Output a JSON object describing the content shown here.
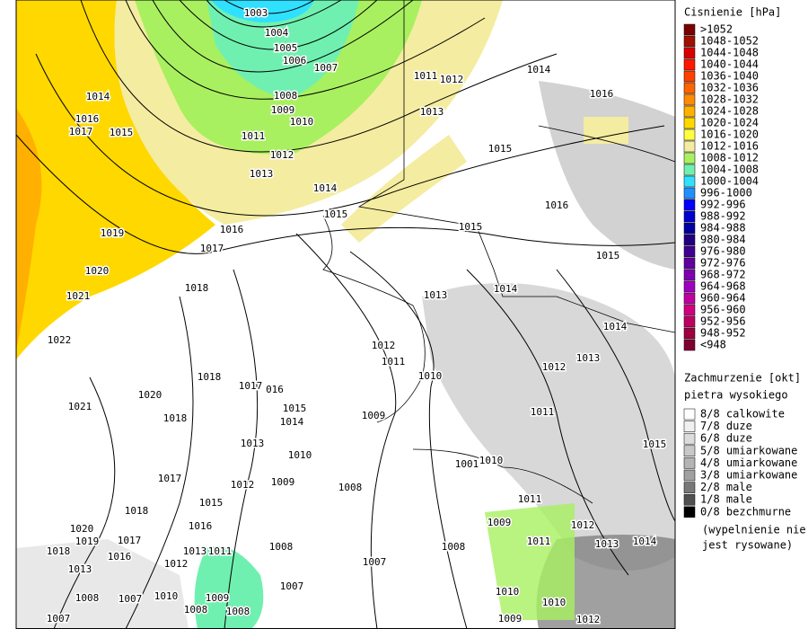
{
  "map": {
    "legend_pressure": {
      "title": "Cisnienie [hPa]",
      "classes": [
        {
          "label": ">1052",
          "color": "#7a0000"
        },
        {
          "label": "1048-1052",
          "color": "#a01000"
        },
        {
          "label": "1044-1048",
          "color": "#d80000"
        },
        {
          "label": "1040-1044",
          "color": "#ff1800"
        },
        {
          "label": "1036-1040",
          "color": "#ff4000"
        },
        {
          "label": "1032-1036",
          "color": "#ff6400"
        },
        {
          "label": "1028-1032",
          "color": "#ff8c00"
        },
        {
          "label": "1024-1028",
          "color": "#ffb000"
        },
        {
          "label": "1020-1024",
          "color": "#ffd800"
        },
        {
          "label": "1016-1020",
          "color": "#ffff40"
        },
        {
          "label": "1012-1016",
          "color": "#f4eca0"
        },
        {
          "label": "1008-1012",
          "color": "#a8f060"
        },
        {
          "label": "1004-1008",
          "color": "#70f0b0"
        },
        {
          "label": "1000-1004",
          "color": "#30e0ff"
        },
        {
          "label": "996-1000",
          "color": "#2090ff"
        },
        {
          "label": "992-996",
          "color": "#0000ff"
        },
        {
          "label": "988-992",
          "color": "#0000d0"
        },
        {
          "label": "984-988",
          "color": "#0000a0"
        },
        {
          "label": "980-984",
          "color": "#200080"
        },
        {
          "label": "976-980",
          "color": "#400090"
        },
        {
          "label": "972-976",
          "color": "#6000a0"
        },
        {
          "label": "968-972",
          "color": "#8000b0"
        },
        {
          "label": "964-968",
          "color": "#a000c0"
        },
        {
          "label": "960-964",
          "color": "#c000a0"
        },
        {
          "label": "956-960",
          "color": "#d00080"
        },
        {
          "label": "952-956",
          "color": "#c00060"
        },
        {
          "label": "948-952",
          "color": "#a00040"
        },
        {
          "label": "<948",
          "color": "#800030"
        }
      ]
    },
    "legend_cloud": {
      "title": "Zachmurzenie [okt]",
      "subtitle": "pietra wysokiego",
      "classes": [
        {
          "label": "8/8 calkowite",
          "color": "#ffffff"
        },
        {
          "label": "7/8 duze",
          "color": "#f0f0f0"
        },
        {
          "label": "6/8 duze",
          "color": "#dcdcdc"
        },
        {
          "label": "5/8 umiarkowane",
          "color": "#c8c8c8"
        },
        {
          "label": "4/8 umiarkowane",
          "color": "#b4b4b4"
        },
        {
          "label": "3/8 umiarkowane",
          "color": "#a0a0a0"
        },
        {
          "label": "2/8 male",
          "color": "#787878"
        },
        {
          "label": "1/8 male",
          "color": "#505050"
        },
        {
          "label": "0/8 bezchmurne",
          "color": "#000000"
        }
      ],
      "note": [
        "(wypelnienie nie",
        "jest rysowane)"
      ]
    },
    "isobar_labels": [
      "1003",
      "1004",
      "1005",
      "1006",
      "1007",
      "1008",
      "1009",
      "1010",
      "1011",
      "1012",
      "1013",
      "1014",
      "1015",
      "1016",
      "1017",
      "1018",
      "1019",
      "1020",
      "1021",
      "1022",
      "1014",
      "1016",
      "1017",
      "1015",
      "1011",
      "1012",
      "1014",
      "1016",
      "1013",
      "1015",
      "1016",
      "1015",
      "1015",
      "1013",
      "1014",
      "1014",
      "1012",
      "1011",
      "1010",
      "1012",
      "1013",
      "1018",
      "1017",
      "016",
      "1015",
      "1020",
      "1021",
      "1018",
      "1014",
      "1009",
      "1011",
      "1013",
      "1010",
      "1015",
      "1010",
      "1001",
      "1017",
      "1012",
      "1009",
      "1008",
      "1015",
      "1018",
      "1016",
      "1011",
      "1009",
      "1012",
      "1020",
      "1019",
      "1017",
      "1018",
      "1013",
      "1011",
      "1016",
      "1012",
      "1008",
      "1008",
      "1011",
      "1013",
      "1014",
      "1007",
      "1007",
      "1007",
      "1010",
      "1009",
      "1008",
      "1008",
      "1008",
      "1007",
      "1010",
      "1010",
      "1009",
      "1012",
      "1013"
    ]
  }
}
